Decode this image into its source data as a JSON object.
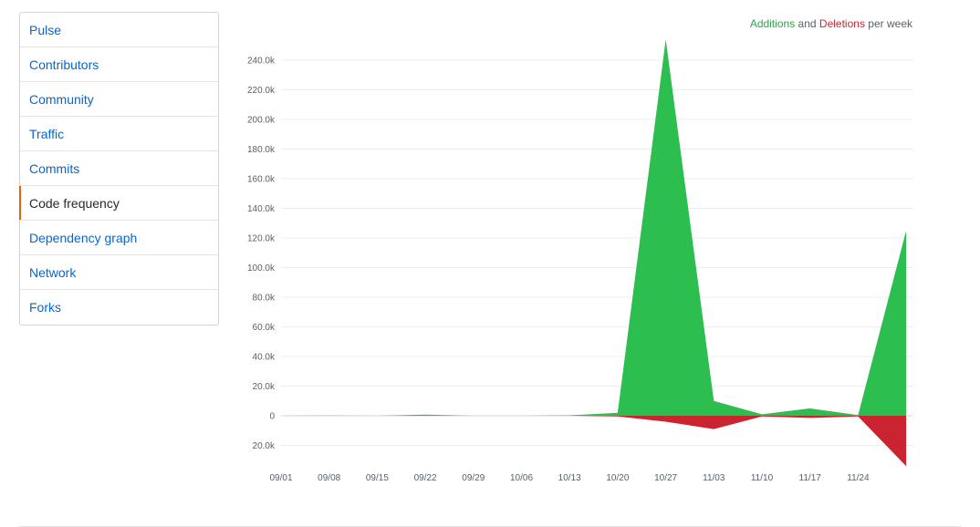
{
  "sidebar": {
    "items": [
      {
        "label": "Pulse",
        "selected": false
      },
      {
        "label": "Contributors",
        "selected": false
      },
      {
        "label": "Community",
        "selected": false
      },
      {
        "label": "Traffic",
        "selected": false
      },
      {
        "label": "Commits",
        "selected": false
      },
      {
        "label": "Code frequency",
        "selected": true
      },
      {
        "label": "Dependency graph",
        "selected": false
      },
      {
        "label": "Network",
        "selected": false
      },
      {
        "label": "Forks",
        "selected": false
      }
    ],
    "selected_indicator_color": "#e36209"
  },
  "legend": {
    "additions": "Additions",
    "and": "and",
    "deletions": "Deletions",
    "suffix": "per week"
  },
  "colors": {
    "additions": "#2cbe4e",
    "deletions": "#cb2431",
    "link": "#0366d6"
  },
  "chart_data": {
    "type": "area",
    "categories": [
      "09/01",
      "09/08",
      "09/15",
      "09/22",
      "09/29",
      "10/06",
      "10/13",
      "10/20",
      "10/27",
      "11/03",
      "11/10",
      "11/17",
      "11/24",
      ""
    ],
    "y_tick_labels": [
      "240.0k",
      "220.0k",
      "200.0k",
      "180.0k",
      "160.0k",
      "140.0k",
      "120.0k",
      "100.0k",
      "80.0k",
      "60.0k",
      "40.0k",
      "20.0k",
      "0",
      "20.0k"
    ],
    "y_ticks": [
      240000,
      220000,
      200000,
      180000,
      160000,
      140000,
      120000,
      100000,
      80000,
      60000,
      40000,
      20000,
      0,
      -20000
    ],
    "ylim": [
      -34000,
      255000
    ],
    "series": [
      {
        "name": "Additions",
        "values": [
          0,
          200,
          0,
          800,
          0,
          0,
          300,
          2000,
          254000,
          10000,
          1000,
          5000,
          500,
          125000
        ]
      },
      {
        "name": "Deletions",
        "values": [
          0,
          0,
          0,
          0,
          0,
          0,
          0,
          -500,
          -4000,
          -9000,
          -500,
          -1500,
          -500,
          -34000
        ]
      }
    ]
  }
}
